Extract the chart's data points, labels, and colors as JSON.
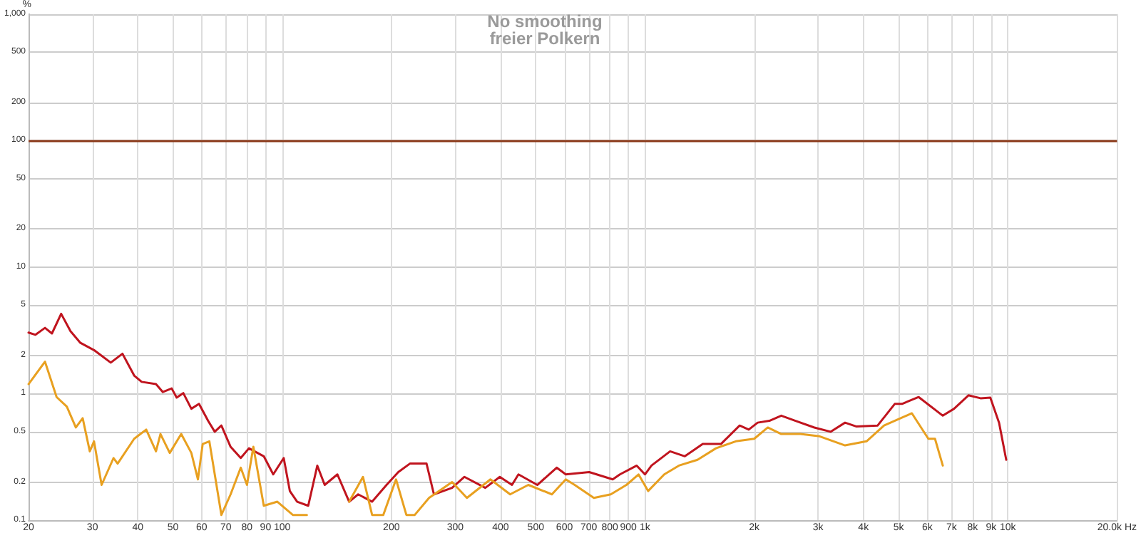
{
  "chart_data": {
    "type": "line",
    "title": "No smoothing",
    "subtitle": "freier Polkern",
    "ylabel": "%",
    "log": "xy",
    "grid": true,
    "line_style": "solid",
    "marker": "none",
    "xlim": [
      20,
      20000
    ],
    "ylim": [
      0.1,
      1000
    ],
    "xticks": [
      20,
      30,
      40,
      50,
      60,
      70,
      80,
      90,
      100,
      200,
      300,
      400,
      500,
      600,
      700,
      800,
      900,
      {
        "value": 1000,
        "label": "1k"
      },
      {
        "value": 2000,
        "label": "2k"
      },
      {
        "value": 3000,
        "label": "3k"
      },
      {
        "value": 4000,
        "label": "4k"
      },
      {
        "value": 5000,
        "label": "5k"
      },
      {
        "value": 6000,
        "label": "6k"
      },
      {
        "value": 7000,
        "label": "7k"
      },
      {
        "value": 8000,
        "label": "8k"
      },
      {
        "value": 9000,
        "label": "9k"
      },
      {
        "value": 10000,
        "label": "10k"
      },
      {
        "value": 20000,
        "label": "20.0k Hz"
      }
    ],
    "yticks": [
      0.1,
      0.2,
      0.5,
      1,
      2,
      5,
      10,
      20,
      50,
      100,
      200,
      500,
      {
        "value": 1000,
        "label": "1,000"
      }
    ],
    "ref_lines": [
      {
        "axis": "y",
        "value": 100,
        "color": "#8b3a1a"
      }
    ],
    "series": [
      {
        "color": "#c0141e",
        "x": [
          20,
          20.9,
          22.2,
          23.2,
          24.6,
          26.1,
          27.8,
          30.3,
          33.7,
          36.3,
          39.1,
          41,
          44.9,
          46.9,
          49.6,
          51.2,
          53.4,
          56.2,
          59,
          62.5,
          65.2,
          68,
          72.1,
          76.9,
          81,
          89,
          94.5,
          101,
          105,
          110,
          118,
          125,
          131,
          142,
          153,
          162,
          177,
          194,
          209,
          225,
          250,
          262,
          294,
          318,
          363,
          398,
          430,
          448,
          505,
          571,
          605,
          702,
          815,
          853,
          949,
          1000,
          1042,
          1173,
          1288,
          1443,
          1620,
          1824,
          1932,
          2044,
          2202,
          2375,
          2600,
          2930,
          3247,
          3560,
          3830,
          4378,
          4880,
          5110,
          5680,
          6620,
          7110,
          7790,
          8410,
          8950,
          9460,
          9900
        ],
        "values": [
          3.04,
          2.92,
          3.31,
          2.99,
          4.28,
          3.12,
          2.52,
          2.21,
          1.76,
          2.07,
          1.39,
          1.24,
          1.19,
          1.03,
          1.1,
          0.93,
          1.01,
          0.76,
          0.83,
          0.61,
          0.5,
          0.56,
          0.38,
          0.31,
          0.37,
          0.32,
          0.23,
          0.31,
          0.17,
          0.14,
          0.13,
          0.27,
          0.19,
          0.23,
          0.14,
          0.16,
          0.14,
          0.19,
          0.24,
          0.28,
          0.28,
          0.16,
          0.18,
          0.22,
          0.18,
          0.22,
          0.19,
          0.23,
          0.19,
          0.26,
          0.23,
          0.24,
          0.21,
          0.23,
          0.27,
          0.23,
          0.27,
          0.35,
          0.32,
          0.4,
          0.4,
          0.56,
          0.52,
          0.59,
          0.61,
          0.67,
          0.61,
          0.54,
          0.5,
          0.59,
          0.55,
          0.56,
          0.83,
          0.83,
          0.94,
          0.67,
          0.76,
          0.97,
          0.92,
          0.93,
          0.59,
          0.3
        ]
      },
      {
        "color": "#e8a020",
        "x": [
          20,
          22.2,
          23.9,
          25.5,
          27,
          28.2,
          29.5,
          30.3,
          31.8,
          34.3,
          35.2,
          39.1,
          42.2,
          44.9,
          46.2,
          49,
          52.7,
          56.2,
          58.6,
          60.4,
          63,
          68,
          72.1,
          76.9,
          80,
          83.3,
          89,
          97,
          107,
          117,
          135,
          153,
          167,
          177,
          190,
          206,
          220,
          232,
          254,
          294,
          323,
          375,
          425,
          477,
          554,
          605,
          640,
          723,
          805,
          889,
          960,
          1020,
          1130,
          1240,
          1396,
          1569,
          1780,
          2000,
          2180,
          2375,
          2680,
          3030,
          3560,
          4080,
          4560,
          5440,
          6040,
          6300,
          6620
        ],
        "values": [
          1.19,
          1.79,
          0.94,
          0.79,
          0.54,
          0.64,
          0.35,
          0.42,
          0.19,
          0.31,
          0.28,
          0.44,
          0.52,
          0.35,
          0.48,
          0.34,
          0.48,
          0.34,
          0.21,
          0.4,
          0.42,
          0.11,
          0.16,
          0.26,
          0.19,
          0.38,
          0.13,
          0.14,
          0.11,
          0.11,
          null,
          0.14,
          0.22,
          0.11,
          0.11,
          0.21,
          0.11,
          0.11,
          0.15,
          0.2,
          0.15,
          0.21,
          0.16,
          0.19,
          0.16,
          0.21,
          0.19,
          0.15,
          0.16,
          0.19,
          0.23,
          0.17,
          0.23,
          0.27,
          0.3,
          0.37,
          0.42,
          0.44,
          0.54,
          0.48,
          0.48,
          0.46,
          0.39,
          0.42,
          0.56,
          0.7,
          0.44,
          0.44,
          0.27
        ]
      }
    ]
  }
}
